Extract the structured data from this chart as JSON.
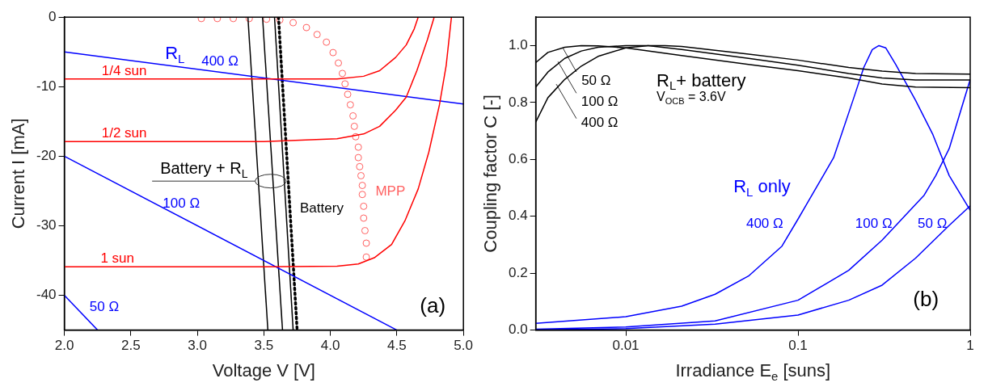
{
  "chart_data": [
    {
      "type": "line",
      "xlabel": "Voltage V [V]",
      "ylabel": "Current I [mA]",
      "xlim": [
        2,
        5
      ],
      "ylim": [
        -45,
        0
      ],
      "xticks": [
        {
          "value": 2,
          "label": "2.0"
        },
        {
          "value": 2.5,
          "label": "2.5"
        },
        {
          "value": 3,
          "label": "3.0"
        },
        {
          "value": 3.5,
          "label": "3.5"
        },
        {
          "value": 4,
          "label": "4.0"
        },
        {
          "value": 4.5,
          "label": "4.5"
        },
        {
          "value": 5,
          "label": "5.0"
        }
      ],
      "yticks": [
        0,
        -10,
        -20,
        -30,
        -40
      ],
      "series": [
        {
          "name": "1/4 sun",
          "color": "#ff0000",
          "x": [
            2,
            3.5,
            4.05,
            4.25,
            4.37,
            4.49,
            4.57,
            4.63,
            4.66
          ],
          "values": [
            -8.9,
            -8.9,
            -8.9,
            -8.5,
            -7.7,
            -5.8,
            -4.0,
            -1.7,
            0
          ]
        },
        {
          "name": "1/2 sun",
          "color": "#ff0000",
          "x": [
            2,
            3.5,
            4.05,
            4.25,
            4.37,
            4.49,
            4.57,
            4.65,
            4.73,
            4.78
          ],
          "values": [
            -17.9,
            -17.9,
            -17.5,
            -16.8,
            -15.7,
            -13.4,
            -11.5,
            -7.7,
            -3.2,
            0
          ]
        },
        {
          "name": "1 sun",
          "color": "#ff0000",
          "x": [
            2,
            3.5,
            4.05,
            4.21,
            4.33,
            4.46,
            4.56,
            4.66,
            4.74,
            4.82,
            4.87,
            4.91
          ],
          "values": [
            -35.9,
            -35.9,
            -35.8,
            -35.5,
            -34.6,
            -32.7,
            -29.3,
            -24.7,
            -19.4,
            -12.6,
            -7.0,
            0
          ]
        },
        {
          "name": "400 Ω",
          "color": "#0000ff",
          "x": [
            2,
            5
          ],
          "values": [
            -5,
            -12.5
          ]
        },
        {
          "name": "100 Ω",
          "color": "#0000ff",
          "x": [
            2,
            4.5
          ],
          "values": [
            -20,
            -45
          ]
        },
        {
          "name": "50 Ω",
          "color": "#0000ff",
          "x": [
            2,
            2.25
          ],
          "values": [
            -40,
            -45
          ]
        },
        {
          "color": "#000000",
          "x": [
            3.38,
            3.53
          ],
          "values": [
            0,
            -45
          ]
        },
        {
          "color": "#000000",
          "x": [
            3.49,
            3.64
          ],
          "values": [
            0,
            -45
          ]
        },
        {
          "color": "#000000",
          "x": [
            3.58,
            3.72
          ],
          "values": [
            0,
            -45
          ]
        },
        {
          "name": "Battery",
          "color": "#000000",
          "line_style": "dotted",
          "x": [
            3.61,
            3.75
          ],
          "values": [
            0,
            -45
          ]
        },
        {
          "name": "MPP",
          "type": "scatter",
          "marker": "circle",
          "color": "#ff6060",
          "x": [
            3.03,
            3.15,
            3.27,
            3.39,
            3.52,
            3.62,
            3.72,
            3.82,
            3.9,
            3.97,
            4.02,
            4.06,
            4.09,
            4.11,
            4.13,
            4.15,
            4.17,
            4.18,
            4.19,
            4.21,
            4.21,
            4.22,
            4.23,
            4.24,
            4.24,
            4.25,
            4.25,
            4.26,
            4.27,
            4.27
          ],
          "values": [
            -0.2,
            -0.2,
            -0.2,
            -0.2,
            -0.3,
            -0.4,
            -0.8,
            -1.5,
            -2.5,
            -3.6,
            -5.1,
            -6.6,
            -8.1,
            -9.6,
            -11.1,
            -12.6,
            -14.2,
            -15.7,
            -17.2,
            -18.7,
            -20.2,
            -21.5,
            -22.8,
            -24.2,
            -25.5,
            -27.2,
            -28.9,
            -30.7,
            -32.5,
            -34.5
          ]
        }
      ],
      "annotations": [
        "R$_{L}$",
        "Battery + R$_{L}$",
        "(a)"
      ]
    },
    {
      "type": "line",
      "xlabel": "Irradiance E$_{e}$ [suns]",
      "ylabel": "Coupling factor C [-]",
      "log": "x",
      "xlim": [
        0.003,
        1
      ],
      "ylim": [
        0,
        1.1
      ],
      "xticks": [
        0.01,
        0.1,
        1
      ],
      "yticks": [
        {
          "value": 0,
          "label": "0.0"
        },
        {
          "value": 0.2,
          "label": "0.2"
        },
        {
          "value": 0.4,
          "label": "0.4"
        },
        {
          "value": 0.6,
          "label": "0.6"
        },
        {
          "value": 0.8,
          "label": "0.8"
        },
        {
          "value": 1,
          "label": "1.0"
        }
      ],
      "series": [
        {
          "name": "50 Ω",
          "color": "#000000",
          "x": [
            0.003,
            0.00353,
            0.00442,
            0.00552,
            0.0069,
            0.01,
            0.0211,
            0.0516,
            0.1,
            0.197,
            0.308,
            0.482,
            1
          ],
          "values": [
            0.94,
            0.976,
            0.994,
            1.0,
            0.999,
            0.992,
            0.965,
            0.934,
            0.912,
            0.886,
            0.865,
            0.854,
            0.852
          ]
        },
        {
          "name": "100 Ω",
          "color": "#000000",
          "x": [
            0.003,
            0.00353,
            0.00442,
            0.00552,
            0.0069,
            0.01,
            0.0135,
            0.0211,
            0.0516,
            0.1,
            0.197,
            0.308,
            0.482,
            1
          ],
          "values": [
            0.854,
            0.907,
            0.955,
            0.981,
            0.994,
            1.0,
            1.0,
            0.986,
            0.955,
            0.931,
            0.902,
            0.886,
            0.879,
            0.879
          ]
        },
        {
          "name": "400 Ω",
          "color": "#000000",
          "x": [
            0.003,
            0.00353,
            0.00442,
            0.00552,
            0.0069,
            0.01,
            0.0135,
            0.0169,
            0.0211,
            0.0516,
            0.1,
            0.197,
            0.308,
            0.482,
            1
          ],
          "values": [
            0.731,
            0.817,
            0.881,
            0.928,
            0.962,
            0.992,
            1.0,
            1.0,
            0.997,
            0.97,
            0.949,
            0.923,
            0.91,
            0.902,
            0.9
          ]
        },
        {
          "name": "400 Ω",
          "color": "#0000ff",
          "x": [
            0.003,
            0.01,
            0.0211,
            0.033,
            0.0516,
            0.0807,
            0.1,
            0.161,
            0.211,
            0.241,
            0.27,
            0.295,
            0.323,
            0.369,
            0.482,
            0.604,
            0.755,
            1
          ],
          "values": [
            0.024,
            0.047,
            0.084,
            0.126,
            0.19,
            0.295,
            0.39,
            0.606,
            0.817,
            0.923,
            0.986,
            1.0,
            0.992,
            0.934,
            0.807,
            0.69,
            0.543,
            0.421
          ]
        },
        {
          "name": "100 Ω",
          "color": "#0000ff",
          "x": [
            0.003,
            0.01,
            0.033,
            0.1,
            0.197,
            0.308,
            0.54,
            0.631,
            0.755,
            1
          ],
          "values": [
            0.003,
            0.011,
            0.032,
            0.105,
            0.21,
            0.316,
            0.474,
            0.543,
            0.638,
            0.881
          ]
        },
        {
          "name": "50 Ω",
          "color": "#0000ff",
          "x": [
            0.003,
            0.01,
            0.033,
            0.1,
            0.197,
            0.308,
            0.482,
            0.755,
            1
          ],
          "values": [
            0.001,
            0.005,
            0.021,
            0.053,
            0.105,
            0.158,
            0.253,
            0.368,
            0.437
          ]
        }
      ],
      "annotations": [
        "R$_{L}$+ battery",
        "V$_{OCB}$ = 3.6V",
        "R$_{L}$ only",
        "(b)"
      ]
    }
  ]
}
